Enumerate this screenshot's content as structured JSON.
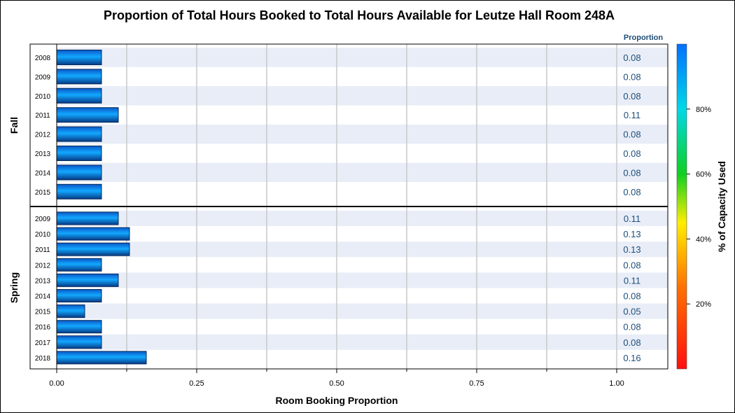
{
  "chart_data": {
    "type": "bar",
    "orientation": "horizontal",
    "title": "Proportion of Total Hours Booked to Total Hours Available for Leutze Hall Room 248A",
    "xlabel": "Room Booking Proportion",
    "value_column_header": "Proportion",
    "xlim": [
      0,
      1.0
    ],
    "xticks": [
      "0.00",
      "0.25",
      "0.50",
      "0.75",
      "1.00"
    ],
    "grid": true,
    "legend": {
      "type": "colorbar",
      "label": "% of Capacity Used",
      "placement": "right",
      "ticks": [
        "20%",
        "40%",
        "60%",
        "80%"
      ],
      "colors": [
        "#ff2000",
        "#ff8000",
        "#ffff00",
        "#00cc00",
        "#00e0e0",
        "#0070ff"
      ]
    },
    "panels": [
      {
        "name": "Fall",
        "categories": [
          "2008",
          "2009",
          "2010",
          "2011",
          "2012",
          "2013",
          "2014",
          "2015"
        ],
        "values": [
          0.08,
          0.08,
          0.08,
          0.11,
          0.08,
          0.08,
          0.08,
          0.08
        ],
        "labels": [
          "0.08",
          "0.08",
          "0.08",
          "0.11",
          "0.08",
          "0.08",
          "0.08",
          "0.08"
        ]
      },
      {
        "name": "Spring",
        "categories": [
          "2009",
          "2010",
          "2011",
          "2012",
          "2013",
          "2014",
          "2015",
          "2016",
          "2017",
          "2018"
        ],
        "values": [
          0.11,
          0.13,
          0.13,
          0.08,
          0.11,
          0.08,
          0.05,
          0.08,
          0.08,
          0.16
        ],
        "labels": [
          "0.11",
          "0.13",
          "0.13",
          "0.08",
          "0.11",
          "0.08",
          "0.05",
          "0.08",
          "0.08",
          "0.16"
        ]
      }
    ],
    "colors": {
      "bar_top": "#1e90ff",
      "bar_mid": "#0aa0f0",
      "bar_bottom": "#0040a0",
      "band": "#e8edf7"
    }
  }
}
